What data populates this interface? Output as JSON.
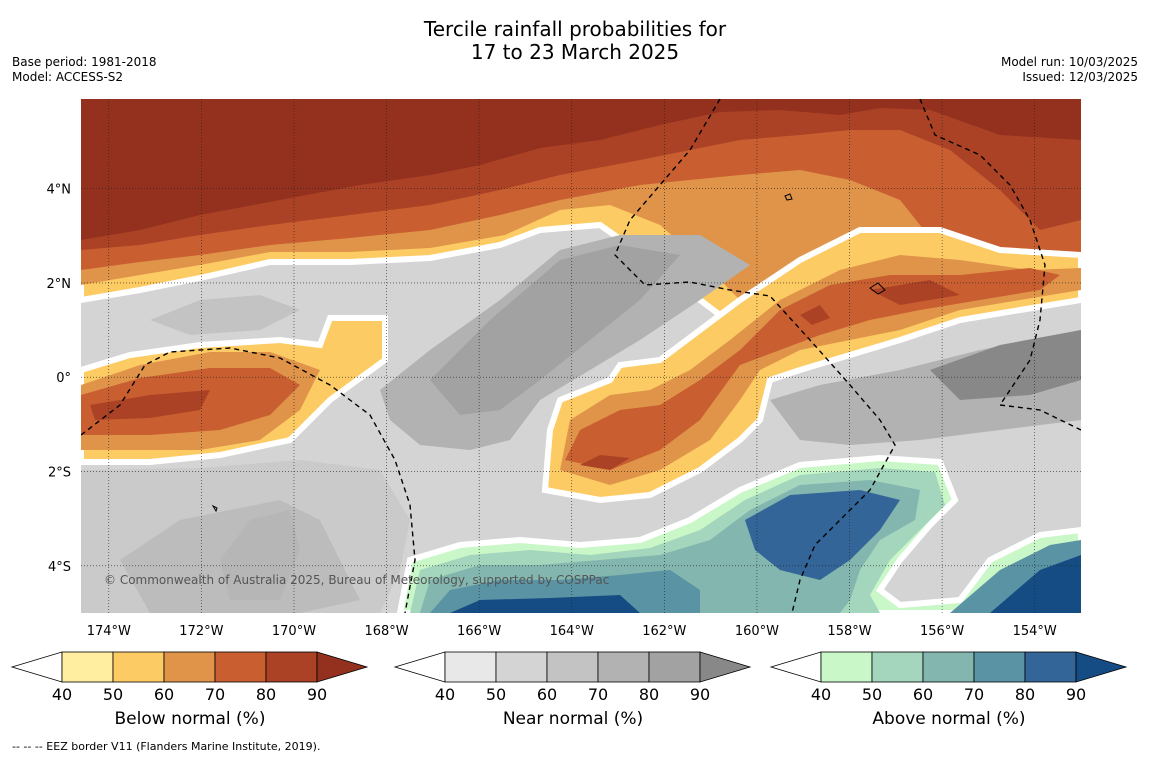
{
  "title_line1": "Tercile rainfall probabilities for",
  "title_line2": "17 to 23 March 2025",
  "base_period": "Base period: 1981-2018",
  "model": "Model: ACCESS-S2",
  "model_run": "Model run: 10/03/2025",
  "issued": "Issued: 12/03/2025",
  "copyright": "© Commonwealth of Australia 2025, Bureau of Meteorology, supported by COSPPac",
  "footnote": "--  --  -- EEZ border V11 (Flanders Marine Institute, 2019).",
  "map": {
    "lon_range": [
      -174.6,
      -153.0
    ],
    "lat_range": [
      -5.0,
      5.9
    ],
    "x_ticks": [
      "174°W",
      "172°W",
      "170°W",
      "168°W",
      "166°W",
      "164°W",
      "162°W",
      "160°W",
      "158°W",
      "156°W",
      "154°W"
    ],
    "x_tick_values": [
      -174,
      -172,
      -170,
      -168,
      -166,
      -164,
      -162,
      -160,
      -158,
      -156,
      -154
    ],
    "y_ticks": [
      "4°N",
      "2°N",
      "0°",
      "2°S",
      "4°S"
    ],
    "y_tick_values": [
      4,
      2,
      0,
      -2,
      -4
    ]
  },
  "colorbars": [
    {
      "label": "Below normal (%)",
      "ticks": [
        "40",
        "50",
        "60",
        "70",
        "80",
        "90"
      ],
      "colors": [
        "#ffeea0",
        "#fdcb63",
        "#e0944a",
        "#c95f30",
        "#ab4225",
        "#93311e"
      ]
    },
    {
      "label": "Near normal (%)",
      "ticks": [
        "40",
        "50",
        "60",
        "70",
        "80",
        "90"
      ],
      "colors": [
        "#e8e8e8",
        "#d4d4d4",
        "#c3c3c3",
        "#b2b2b2",
        "#a2a2a2",
        "#888888"
      ]
    },
    {
      "label": "Above normal (%)",
      "ticks": [
        "40",
        "50",
        "60",
        "70",
        "80",
        "90"
      ],
      "colors": [
        "#caf7c8",
        "#a4d5bd",
        "#82b6ae",
        "#5a93a3",
        "#336598",
        "#164c84"
      ]
    }
  ]
}
